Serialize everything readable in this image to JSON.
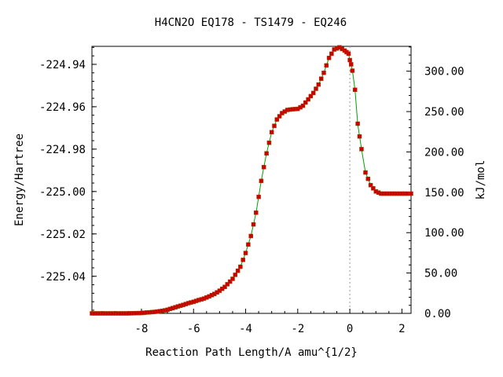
{
  "chart_data": {
    "type": "line",
    "title": "H4CN2O    EQ178 - TS1479 - EQ246",
    "xlabel": "Reaction Path Length/A amu^{1/2}",
    "ylabel": "Energy/Hartree",
    "y2label": "kJ/mol",
    "xlim": [
      -9.9,
      2.35
    ],
    "ylim": [
      -225.0575,
      -224.9315
    ],
    "y2lim": [
      0,
      330.8
    ],
    "x_ticks": [
      "-8",
      "-6",
      "-4",
      "-2",
      "0",
      "2"
    ],
    "y_ticks": [
      "-224.94",
      "-224.96",
      "-224.98",
      "-225.00",
      "-225.02",
      "-225.04"
    ],
    "y2_ticks": [
      "0.00",
      "50.00",
      "100.00",
      "150.00",
      "200.00",
      "250.00",
      "300.00"
    ],
    "ts_marker_x": 0,
    "line_color": "#00a000",
    "marker_color": "#cc0000",
    "x": [
      -9.9,
      -9.5,
      -9.0,
      -8.5,
      -8.0,
      -7.5,
      -7.2,
      -7.0,
      -6.8,
      -6.6,
      -6.4,
      -6.2,
      -6.0,
      -5.8,
      -5.6,
      -5.4,
      -5.2,
      -5.0,
      -4.8,
      -4.6,
      -4.5,
      -4.4,
      -4.2,
      -4.0,
      -3.8,
      -3.6,
      -3.4,
      -3.2,
      -3.0,
      -2.8,
      -2.6,
      -2.4,
      -2.2,
      -2.0,
      -1.8,
      -1.6,
      -1.4,
      -1.2,
      -1.0,
      -0.8,
      -0.6,
      -0.4,
      -0.2,
      -0.05,
      0.0,
      0.05,
      0.1,
      0.2,
      0.3,
      0.45,
      0.6,
      0.8,
      1.0,
      1.2,
      1.4,
      1.6,
      1.8,
      2.0,
      2.2,
      2.35
    ],
    "y": [
      -225.0575,
      -225.0575,
      -225.0575,
      -225.0575,
      -225.0573,
      -225.0568,
      -225.0563,
      -225.0558,
      -225.055,
      -225.0542,
      -225.0535,
      -225.0527,
      -225.052,
      -225.0512,
      -225.0505,
      -225.0495,
      -225.0483,
      -225.0468,
      -225.045,
      -225.0425,
      -225.0412,
      -225.0393,
      -225.0355,
      -225.029,
      -225.021,
      -225.01,
      -224.995,
      -224.982,
      -224.972,
      -224.966,
      -224.963,
      -224.9615,
      -224.9612,
      -224.961,
      -224.9595,
      -224.9565,
      -224.9535,
      -224.9495,
      -224.944,
      -224.937,
      -224.933,
      -224.932,
      -224.9335,
      -224.935,
      -224.938,
      -224.94,
      -224.943,
      -224.952,
      -224.968,
      -224.98,
      -224.991,
      -224.997,
      -225.0,
      -225.001,
      -225.001,
      -225.001,
      -225.001,
      -225.001,
      -225.001,
      -225.001
    ]
  }
}
